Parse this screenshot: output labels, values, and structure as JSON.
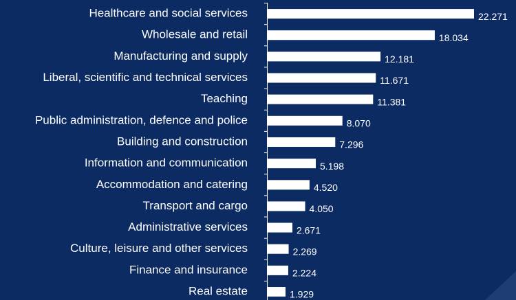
{
  "chart_data": {
    "type": "bar",
    "orientation": "horizontal",
    "color": "#ffffff",
    "categories": [
      "Healthcare and social services",
      "Wholesale and retail",
      "Manufacturing and supply",
      "Liberal, scientific and technical services",
      "Teaching",
      "Public administration, defence and police",
      "Building and construction",
      "Information and communication",
      "Accommodation and catering",
      "Transport and cargo",
      "Administrative services",
      "Culture, leisure and other services",
      "Finance and insurance",
      "Real estate"
    ],
    "values": [
      22.271,
      18.034,
      12.181,
      11.671,
      11.381,
      8.07,
      7.296,
      5.198,
      4.52,
      4.05,
      2.671,
      2.269,
      2.224,
      1.929
    ],
    "value_labels": [
      "22.271",
      "18.034",
      "12.181",
      "11.671",
      "11.381",
      "8.070",
      "7.296",
      "5.198",
      "4.520",
      "4.050",
      "2.671",
      "2.269",
      "2.224",
      "1.929"
    ]
  }
}
